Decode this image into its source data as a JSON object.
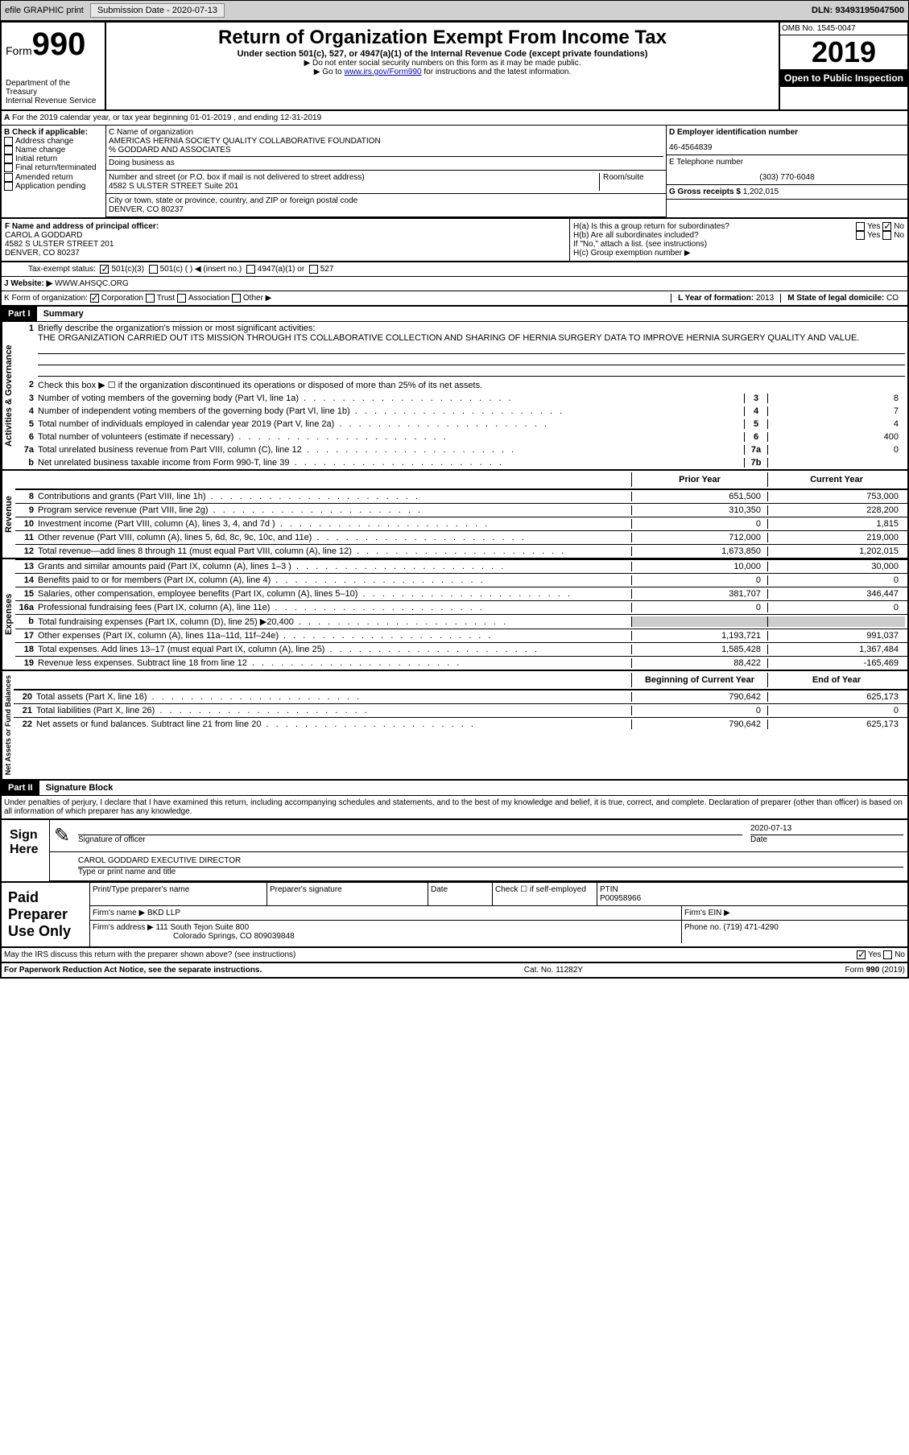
{
  "topbar": {
    "efile": "efile GRAPHIC print",
    "submission_label": "Submission Date - 2020-07-13",
    "dln_label": "DLN: 93493195047500"
  },
  "header": {
    "form_label": "Form",
    "form_num": "990",
    "dept": "Department of the Treasury",
    "irs": "Internal Revenue Service",
    "title": "Return of Organization Exempt From Income Tax",
    "sub1": "Under section 501(c), 527, or 4947(a)(1) of the Internal Revenue Code (except private foundations)",
    "sub2": "▶ Do not enter social security numbers on this form as it may be made public.",
    "sub3_pre": "▶ Go to ",
    "sub3_link": "www.irs.gov/Form990",
    "sub3_post": " for instructions and the latest information.",
    "omb": "OMB No. 1545-0047",
    "year": "2019",
    "inspection": "Open to Public Inspection"
  },
  "section_a": {
    "line": "For the 2019 calendar year, or tax year beginning 01-01-2019   , and ending 12-31-2019",
    "b_label": "B Check if applicable:",
    "b_items": [
      "Address change",
      "Name change",
      "Initial return",
      "Final return/terminated",
      "Amended return",
      "Application pending"
    ],
    "c_label": "C Name of organization",
    "c_name": "AMERICAS HERNIA SOCIETY QUALITY COLLABORATIVE FOUNDATION",
    "c_care": "% GODDARD AND ASSOCIATES",
    "dba_label": "Doing business as",
    "addr_label": "Number and street (or P.O. box if mail is not delivered to street address)",
    "room_label": "Room/suite",
    "addr": "4582 S ULSTER STREET Suite 201",
    "city_label": "City or town, state or province, country, and ZIP or foreign postal code",
    "city": "DENVER, CO  80237",
    "d_label": "D Employer identification number",
    "d_val": "46-4564839",
    "e_label": "E Telephone number",
    "e_val": "(303) 770-6048",
    "g_label": "G Gross receipts $",
    "g_val": "1,202,015",
    "f_label": "F  Name and address of principal officer:",
    "f_name": "CAROL A GODDARD",
    "f_addr": "4582 S ULSTER STREET 201",
    "f_city": "DENVER, CO  80237",
    "ha_label": "H(a)  Is this a group return for subordinates?",
    "hb_label": "H(b)  Are all subordinates included?",
    "h_note": "If \"No,\" attach a list. (see instructions)",
    "hc_label": "H(c)  Group exemption number ▶",
    "yes": "Yes",
    "no": "No"
  },
  "tax_status": {
    "label": "Tax-exempt status:",
    "opt1": "501(c)(3)",
    "opt2": "501(c) (  ) ◀ (insert no.)",
    "opt3": "4947(a)(1) or",
    "opt4": "527"
  },
  "website": {
    "label": "J   Website: ▶",
    "val": "WWW.AHSQC.ORG"
  },
  "k_line": {
    "label": "K Form of organization:",
    "opts": [
      "Corporation",
      "Trust",
      "Association",
      "Other ▶"
    ]
  },
  "l_line": {
    "label": "L Year of formation:",
    "val": "2013"
  },
  "m_line": {
    "label": "M State of legal domicile:",
    "val": "CO"
  },
  "part1": {
    "header": "Part I",
    "title": "Summary",
    "line1_label": "Briefly describe the organization's mission or most significant activities:",
    "line1_text": "THE ORGANIZATION CARRIED OUT ITS MISSION THROUGH ITS COLLABORATIVE COLLECTION AND SHARING OF HERNIA SURGERY DATA TO IMPROVE HERNIA SURGERY QUALITY AND VALUE.",
    "line2": "Check this box ▶ ☐  if the organization discontinued its operations or disposed of more than 25% of its net assets.",
    "rows_ag": [
      {
        "n": "3",
        "t": "Number of voting members of the governing body (Part VI, line 1a)",
        "box": "3",
        "v": "8"
      },
      {
        "n": "4",
        "t": "Number of independent voting members of the governing body (Part VI, line 1b)",
        "box": "4",
        "v": "7"
      },
      {
        "n": "5",
        "t": "Total number of individuals employed in calendar year 2019 (Part V, line 2a)",
        "box": "5",
        "v": "4"
      },
      {
        "n": "6",
        "t": "Total number of volunteers (estimate if necessary)",
        "box": "6",
        "v": "400"
      },
      {
        "n": "7a",
        "t": "Total unrelated business revenue from Part VIII, column (C), line 12",
        "box": "7a",
        "v": "0"
      },
      {
        "n": "b",
        "t": "Net unrelated business taxable income from Form 990-T, line 39",
        "box": "7b",
        "v": ""
      }
    ],
    "prior_year": "Prior Year",
    "current_year": "Current Year",
    "rows_rev": [
      {
        "n": "8",
        "t": "Contributions and grants (Part VIII, line 1h)",
        "py": "651,500",
        "cy": "753,000"
      },
      {
        "n": "9",
        "t": "Program service revenue (Part VIII, line 2g)",
        "py": "310,350",
        "cy": "228,200"
      },
      {
        "n": "10",
        "t": "Investment income (Part VIII, column (A), lines 3, 4, and 7d )",
        "py": "0",
        "cy": "1,815"
      },
      {
        "n": "11",
        "t": "Other revenue (Part VIII, column (A), lines 5, 6d, 8c, 9c, 10c, and 11e)",
        "py": "712,000",
        "cy": "219,000"
      },
      {
        "n": "12",
        "t": "Total revenue—add lines 8 through 11 (must equal Part VIII, column (A), line 12)",
        "py": "1,673,850",
        "cy": "1,202,015"
      }
    ],
    "rows_exp": [
      {
        "n": "13",
        "t": "Grants and similar amounts paid (Part IX, column (A), lines 1–3 )",
        "py": "10,000",
        "cy": "30,000"
      },
      {
        "n": "14",
        "t": "Benefits paid to or for members (Part IX, column (A), line 4)",
        "py": "0",
        "cy": "0"
      },
      {
        "n": "15",
        "t": "Salaries, other compensation, employee benefits (Part IX, column (A), lines 5–10)",
        "py": "381,707",
        "cy": "346,447"
      },
      {
        "n": "16a",
        "t": "Professional fundraising fees (Part IX, column (A), line 11e)",
        "py": "0",
        "cy": "0"
      },
      {
        "n": "b",
        "t": "Total fundraising expenses (Part IX, column (D), line 25) ▶20,400",
        "py": "",
        "cy": "",
        "grey": true
      },
      {
        "n": "17",
        "t": "Other expenses (Part IX, column (A), lines 11a–11d, 11f–24e)",
        "py": "1,193,721",
        "cy": "991,037"
      },
      {
        "n": "18",
        "t": "Total expenses. Add lines 13–17 (must equal Part IX, column (A), line 25)",
        "py": "1,585,428",
        "cy": "1,367,484"
      },
      {
        "n": "19",
        "t": "Revenue less expenses. Subtract line 18 from line 12",
        "py": "88,422",
        "cy": "-165,469"
      }
    ],
    "boy": "Beginning of Current Year",
    "eoy": "End of Year",
    "rows_net": [
      {
        "n": "20",
        "t": "Total assets (Part X, line 16)",
        "py": "790,642",
        "cy": "625,173"
      },
      {
        "n": "21",
        "t": "Total liabilities (Part X, line 26)",
        "py": "0",
        "cy": "0"
      },
      {
        "n": "22",
        "t": "Net assets or fund balances. Subtract line 21 from line 20",
        "py": "790,642",
        "cy": "625,173"
      }
    ],
    "side_ag": "Activities & Governance",
    "side_rev": "Revenue",
    "side_exp": "Expenses",
    "side_net": "Net Assets or Fund Balances"
  },
  "part2": {
    "header": "Part II",
    "title": "Signature Block",
    "penalties": "Under penalties of perjury, I declare that I have examined this return, including accompanying schedules and statements, and to the best of my knowledge and belief, it is true, correct, and complete. Declaration of preparer (other than officer) is based on all information of which preparer has any knowledge."
  },
  "sign": {
    "label": "Sign Here",
    "sig_label": "Signature of officer",
    "date_label": "Date",
    "date_val": "2020-07-13",
    "name": "CAROL GODDARD  EXECUTIVE DIRECTOR",
    "name_label": "Type or print name and title"
  },
  "preparer": {
    "label": "Paid Preparer Use Only",
    "col1": "Print/Type preparer's name",
    "col2": "Preparer's signature",
    "col3": "Date",
    "col4_label": "Check ☐ if self-employed",
    "col5_label": "PTIN",
    "col5_val": "P00958966",
    "firm_label": "Firm's name    ▶",
    "firm_val": "BKD LLP",
    "ein_label": "Firm's EIN ▶",
    "addr_label": "Firm's address ▶",
    "addr_val": "111 South Tejon Suite 800",
    "addr_val2": "Colorado Springs, CO  809039848",
    "phone_label": "Phone no.",
    "phone_val": "(719) 471-4290"
  },
  "footer": {
    "discuss": "May the IRS discuss this return with the preparer shown above? (see instructions)",
    "yes": "Yes",
    "no": "No",
    "paperwork": "For Paperwork Reduction Act Notice, see the separate instructions.",
    "cat": "Cat. No. 11282Y",
    "form": "Form 990 (2019)"
  }
}
